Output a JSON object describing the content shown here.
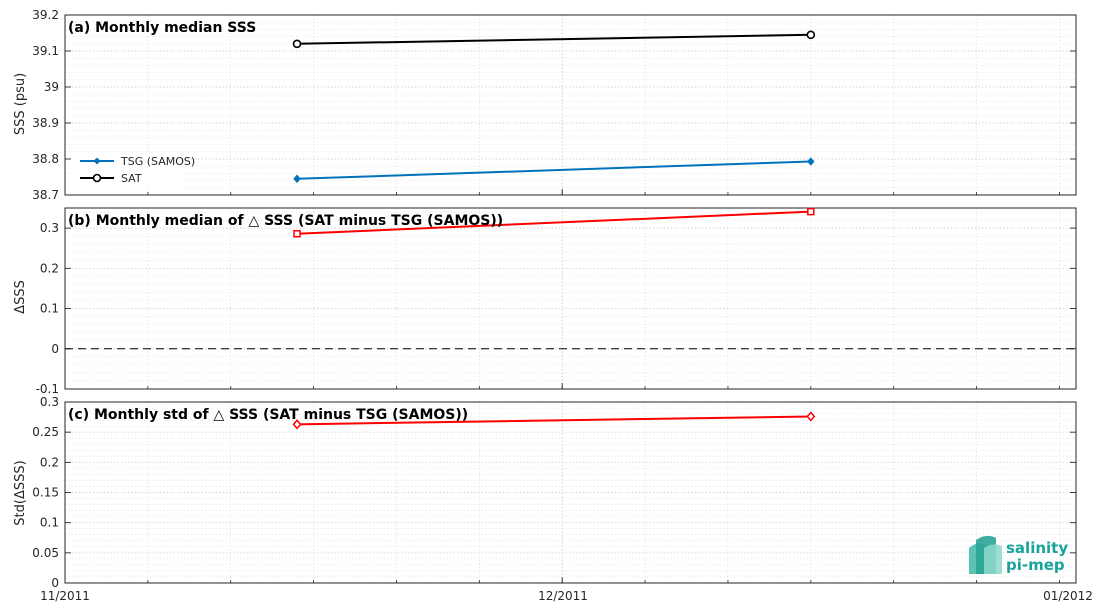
{
  "chart_data": [
    {
      "type": "line",
      "title": "(a) Monthly median SSS",
      "ylabel": "SSS (psu)",
      "ylim": [
        38.7,
        39.2
      ],
      "yticks": [
        "38.7",
        "38.8",
        "38.9",
        "39",
        "39.1",
        "39.2"
      ],
      "x": [
        "2011-11-15",
        "2011-12-16"
      ],
      "series": [
        {
          "name": "TSG (SAMOS)",
          "values": [
            38.745,
            38.793
          ],
          "color": "#0072BD",
          "marker": "diamond"
        },
        {
          "name": "SAT",
          "values": [
            39.12,
            39.145
          ],
          "color": "#000000",
          "marker": "circle"
        }
      ],
      "legend": "bottom-left",
      "grid": true
    },
    {
      "type": "line",
      "title": "(b) Monthly median of △ SSS (SAT minus TSG (SAMOS))",
      "ylabel": "ΔSSS",
      "ylim": [
        -0.1,
        0.35
      ],
      "yticks": [
        "-0.1",
        "0",
        "0.1",
        "0.2",
        "0.3"
      ],
      "x": [
        "2011-11-15",
        "2011-12-16"
      ],
      "series": [
        {
          "values": [
            0.286,
            0.341
          ],
          "color": "#FF0000",
          "marker": "square"
        }
      ],
      "reference_line": 0,
      "grid": true
    },
    {
      "type": "line",
      "title": "(c) Monthly std of △ SSS (SAT minus TSG (SAMOS))",
      "ylabel": "Std(ΔSSS)",
      "ylim": [
        0,
        0.3
      ],
      "yticks": [
        "0",
        "0.05",
        "0.1",
        "0.15",
        "0.2",
        "0.25",
        "0.3"
      ],
      "x": [
        "2011-11-15",
        "2011-12-16"
      ],
      "series": [
        {
          "values": [
            0.263,
            0.276
          ],
          "color": "#FF0000",
          "marker": "diamond"
        }
      ],
      "grid": true
    }
  ],
  "xaxis": {
    "range": [
      "2011-11-01",
      "2012-01-01"
    ],
    "tick_labels": [
      "11/2011",
      "12/2011",
      "01/2012"
    ]
  },
  "logo": {
    "line1": "salinity",
    "line2": "pi-mep"
  }
}
